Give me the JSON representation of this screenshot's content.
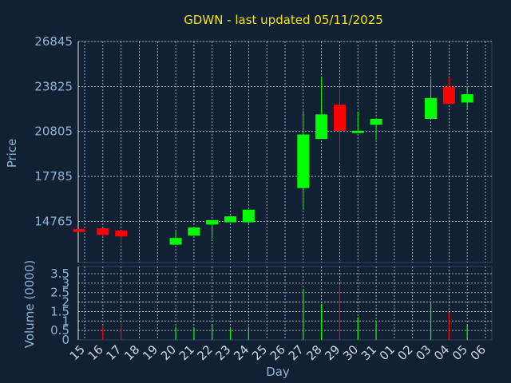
{
  "chart_data": {
    "type": "candlestick",
    "title": "GDWN - last updated 05/11/2025",
    "price_panel": {
      "ylabel": "Price",
      "yticks": [
        14765,
        17785,
        20805,
        23825,
        26845
      ],
      "ylim": [
        12000,
        26845
      ],
      "grid": true
    },
    "volume_panel": {
      "ylabel": "Volume (0000)",
      "yticks": [
        "0",
        "0.5",
        "1",
        "1.5",
        "2",
        "2.5",
        "3",
        "3.5"
      ],
      "ylim": [
        0,
        3.5
      ],
      "grid": true
    },
    "xlabel": "Day",
    "x_ticks": [
      "15",
      "16",
      "17",
      "18",
      "19",
      "20",
      "21",
      "22",
      "23",
      "24",
      "25",
      "26",
      "27",
      "28",
      "29",
      "30",
      "31",
      "01",
      "02",
      "03",
      "04",
      "05",
      "06"
    ],
    "up_color": "#00ff00",
    "down_color": "#ff0000",
    "candles": [
      {
        "x": -0.3,
        "open": 14250,
        "close": 14050,
        "high": 14250,
        "low": 14050
      },
      {
        "x": 1,
        "open": 14300,
        "close": 13850,
        "high": 14300,
        "low": 13750
      },
      {
        "x": 2,
        "open": 14150,
        "close": 13750,
        "high": 14150,
        "low": 13250
      },
      {
        "x": 5,
        "open": 13200,
        "close": 13650,
        "high": 14150,
        "low": 13200
      },
      {
        "x": 6,
        "open": 13800,
        "close": 14350,
        "high": 14350,
        "low": 13800
      },
      {
        "x": 7,
        "open": 14550,
        "close": 14850,
        "high": 14850,
        "low": 13600
      },
      {
        "x": 8,
        "open": 14700,
        "close": 15100,
        "high": 15100,
        "low": 14700
      },
      {
        "x": 9,
        "open": 14700,
        "close": 15550,
        "high": 15550,
        "low": 14600
      },
      {
        "x": 12,
        "open": 17000,
        "close": 20600,
        "high": 22200,
        "low": 15550
      },
      {
        "x": 13,
        "open": 20300,
        "close": 21950,
        "high": 24450,
        "low": 20300
      },
      {
        "x": 14,
        "open": 22600,
        "close": 20850,
        "high": 23650,
        "low": 18800
      },
      {
        "x": 15,
        "open": 20700,
        "close": 20850,
        "high": 22150,
        "low": 20700
      },
      {
        "x": 16,
        "open": 21250,
        "close": 21650,
        "high": 21650,
        "low": 20250
      },
      {
        "x": 19,
        "open": 21650,
        "close": 23050,
        "high": 24350,
        "low": 21650
      },
      {
        "x": 20,
        "open": 23800,
        "close": 22650,
        "high": 24450,
        "low": 22650
      },
      {
        "x": 21,
        "open": 22750,
        "close": 23300,
        "high": 23800,
        "low": 22250
      }
    ],
    "volumes": [
      {
        "x": 1,
        "value": 0.7,
        "dir": "down"
      },
      {
        "x": 2,
        "value": 0.9,
        "dir": "down"
      },
      {
        "x": 5,
        "value": 0.7,
        "dir": "up"
      },
      {
        "x": 6,
        "value": 0.65,
        "dir": "up"
      },
      {
        "x": 7,
        "value": 0.85,
        "dir": "up"
      },
      {
        "x": 8,
        "value": 0.6,
        "dir": "up"
      },
      {
        "x": 9,
        "value": 0.7,
        "dir": "up"
      },
      {
        "x": 12,
        "value": 2.7,
        "dir": "up"
      },
      {
        "x": 13,
        "value": 1.9,
        "dir": "up"
      },
      {
        "x": 14,
        "value": 2.95,
        "dir": "down"
      },
      {
        "x": 15,
        "value": 1.2,
        "dir": "up"
      },
      {
        "x": 16,
        "value": 1.0,
        "dir": "up"
      },
      {
        "x": 19,
        "value": 2.0,
        "dir": "up"
      },
      {
        "x": 20,
        "value": 1.45,
        "dir": "down"
      },
      {
        "x": 21,
        "value": 0.8,
        "dir": "up"
      }
    ]
  }
}
